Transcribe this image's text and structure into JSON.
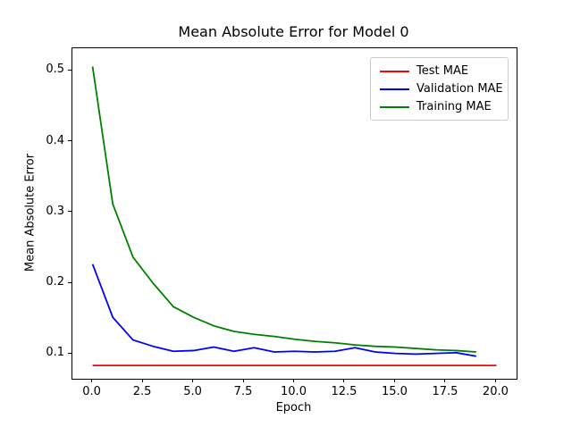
{
  "chart_data": {
    "type": "line",
    "title": "Mean Absolute Error for Model 0",
    "xlabel": "Epoch",
    "ylabel": "Mean Absolute Error",
    "xlim": [
      -1,
      21
    ],
    "ylim": [
      0.0652,
      0.5319
    ],
    "grid": false,
    "legend_position": "upper right",
    "xticks": [
      0,
      2.5,
      5,
      7.5,
      10,
      12.5,
      15,
      17.5,
      20
    ],
    "xtick_labels": [
      "0.0",
      "2.5",
      "5.0",
      "7.5",
      "10.0",
      "12.5",
      "15.0",
      "17.5",
      "20.0"
    ],
    "yticks": [
      0.1,
      0.2,
      0.3,
      0.4,
      0.5
    ],
    "ytick_labels": [
      "0.1",
      "0.2",
      "0.3",
      "0.4",
      "0.5"
    ],
    "series": [
      {
        "name": "Test MAE",
        "color": "#ff0000",
        "x": [
          0,
          1,
          2,
          3,
          4,
          5,
          6,
          7,
          8,
          9,
          10,
          11,
          12,
          13,
          14,
          15,
          16,
          17,
          18,
          19,
          20
        ],
        "y": [
          0.084,
          0.084,
          0.084,
          0.084,
          0.084,
          0.084,
          0.084,
          0.084,
          0.084,
          0.084,
          0.084,
          0.084,
          0.084,
          0.084,
          0.084,
          0.084,
          0.084,
          0.084,
          0.084,
          0.084,
          0.084
        ]
      },
      {
        "name": "Validation MAE",
        "color": "#0000ff",
        "x": [
          0,
          1,
          2,
          3,
          4,
          5,
          6,
          7,
          8,
          9,
          10,
          11,
          12,
          13,
          14,
          15,
          16,
          17,
          18,
          19
        ],
        "y": [
          0.227,
          0.152,
          0.12,
          0.111,
          0.104,
          0.105,
          0.11,
          0.104,
          0.109,
          0.103,
          0.104,
          0.103,
          0.104,
          0.109,
          0.103,
          0.101,
          0.1,
          0.101,
          0.102,
          0.097
        ]
      },
      {
        "name": "Training MAE",
        "color": "#008000",
        "x": [
          0,
          1,
          2,
          3,
          4,
          5,
          6,
          7,
          8,
          9,
          10,
          11,
          12,
          13,
          14,
          15,
          16,
          17,
          18,
          19
        ],
        "y": [
          0.506,
          0.312,
          0.237,
          0.2,
          0.167,
          0.152,
          0.14,
          0.132,
          0.128,
          0.125,
          0.121,
          0.118,
          0.116,
          0.113,
          0.111,
          0.11,
          0.108,
          0.106,
          0.105,
          0.103
        ]
      }
    ]
  }
}
